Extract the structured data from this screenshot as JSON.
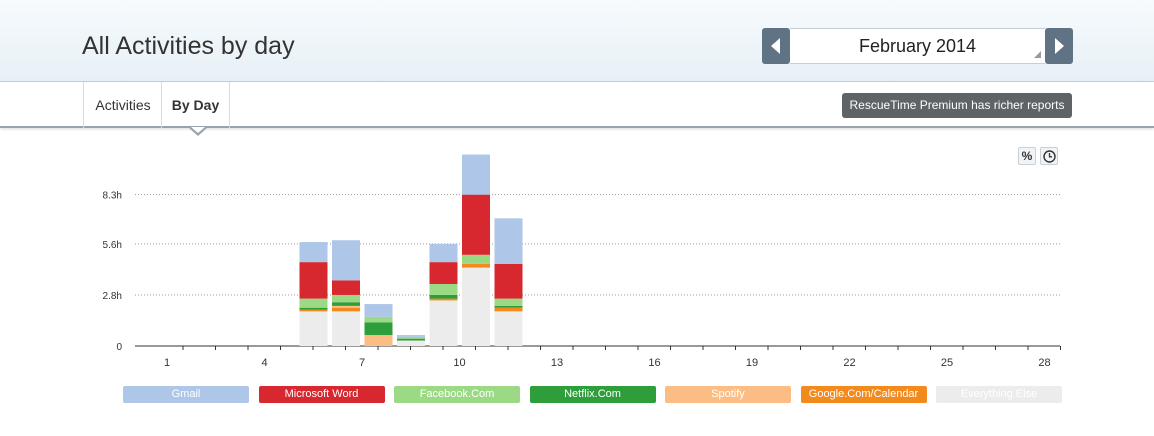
{
  "header": {
    "title": "All Activities by day"
  },
  "month_picker": {
    "value": "February 2014",
    "prev_icon": "chevron-left-icon",
    "next_icon": "chevron-right-icon"
  },
  "tabs": [
    {
      "label": "Activities",
      "active": false
    },
    {
      "label": "By Day",
      "active": true
    }
  ],
  "premium_button": {
    "label": "RescueTime Premium has richer reports"
  },
  "view_toggles": {
    "percent_label": "%",
    "time_icon": "clock-icon"
  },
  "chart_data": {
    "type": "bar",
    "stacked": true,
    "title": "",
    "xlabel": "",
    "ylabel": "",
    "ylim": [
      0,
      10.2
    ],
    "yticks": [
      0,
      2.8,
      5.6,
      8.3
    ],
    "ytick_labels": [
      "0",
      "2.8h",
      "5.6h",
      "8.3h"
    ],
    "categories": [
      1,
      2,
      3,
      4,
      5,
      6,
      7,
      8,
      9,
      10,
      11,
      12,
      13,
      14,
      15,
      16,
      17,
      18,
      19,
      20,
      21,
      22,
      23,
      24,
      25,
      26,
      27,
      28
    ],
    "xtick_labels_shown": [
      "1",
      "4",
      "7",
      "10",
      "13",
      "16",
      "19",
      "22",
      "25",
      "28"
    ],
    "grid": "horizontal-dotted",
    "legend_position": "bottom",
    "series": [
      {
        "name": "Everything Else",
        "color": "#ececec",
        "values": [
          0,
          0,
          0,
          0,
          1.9,
          1.9,
          0,
          0.3,
          2.5,
          4.3,
          1.9,
          0,
          0,
          0,
          0,
          0,
          0,
          0,
          0,
          0,
          0,
          0,
          0,
          0,
          0,
          0,
          0,
          0
        ]
      },
      {
        "name": "Google.Com/Calendar",
        "color": "#f28a1e",
        "values": [
          0,
          0,
          0,
          0,
          0.1,
          0.2,
          0,
          0,
          0.1,
          0.2,
          0.2,
          0,
          0,
          0,
          0,
          0,
          0,
          0,
          0,
          0,
          0,
          0,
          0,
          0,
          0,
          0,
          0,
          0
        ]
      },
      {
        "name": "Spotify",
        "color": "#fbbd83",
        "values": [
          0,
          0,
          0,
          0,
          0,
          0.1,
          0.6,
          0,
          0,
          0,
          0,
          0,
          0,
          0,
          0,
          0,
          0,
          0,
          0,
          0,
          0,
          0,
          0,
          0,
          0,
          0,
          0,
          0
        ]
      },
      {
        "name": "Netflix.Com",
        "color": "#2e9e3b",
        "values": [
          0,
          0,
          0,
          0,
          0.1,
          0.2,
          0.7,
          0.1,
          0.2,
          0,
          0.1,
          0,
          0,
          0,
          0,
          0,
          0,
          0,
          0,
          0,
          0,
          0,
          0,
          0,
          0,
          0,
          0,
          0
        ]
      },
      {
        "name": "Facebook.Com",
        "color": "#9bd985",
        "values": [
          0,
          0,
          0,
          0,
          0.5,
          0.4,
          0.3,
          0.1,
          0.6,
          0.5,
          0.4,
          0,
          0,
          0,
          0,
          0,
          0,
          0,
          0,
          0,
          0,
          0,
          0,
          0,
          0,
          0,
          0,
          0
        ]
      },
      {
        "name": "Microsoft Word",
        "color": "#d7282f",
        "values": [
          0,
          0,
          0,
          0,
          2.0,
          0.8,
          0,
          0,
          1.2,
          3.3,
          1.9,
          0,
          0,
          0,
          0,
          0,
          0,
          0,
          0,
          0,
          0,
          0,
          0,
          0,
          0,
          0,
          0,
          0
        ]
      },
      {
        "name": "Gmail",
        "color": "#aec6e8",
        "values": [
          0,
          0,
          0,
          0,
          1.1,
          2.2,
          0.7,
          0.1,
          1.0,
          2.2,
          2.5,
          0,
          0,
          0,
          0,
          0,
          0,
          0,
          0,
          0,
          0,
          0,
          0,
          0,
          0,
          0,
          0,
          0
        ]
      }
    ]
  },
  "legend": [
    {
      "label": "Gmail",
      "color": "#aec6e8"
    },
    {
      "label": "Microsoft Word",
      "color": "#d7282f"
    },
    {
      "label": "Facebook.Com",
      "color": "#9bd985"
    },
    {
      "label": "Netflix.Com",
      "color": "#2e9e3b"
    },
    {
      "label": "Spotify",
      "color": "#fbbd83"
    },
    {
      "label": "Google.Com/Calendar",
      "color": "#f28a1e"
    },
    {
      "label": "Everything Else",
      "color": "#ececec"
    }
  ]
}
